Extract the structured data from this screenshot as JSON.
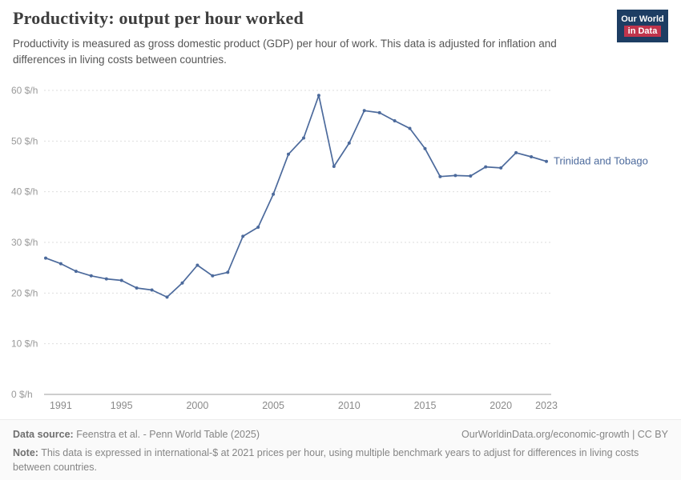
{
  "header": {
    "title": "Productivity: output per hour worked",
    "subtitle": "Productivity is measured as gross domestic product (GDP) per hour of work. This data is adjusted for inflation and differences in living costs between countries.",
    "logo": {
      "line1": "Our World",
      "line2": "in Data",
      "bg_color": "#1d3d63",
      "accent_color": "#c0344c"
    }
  },
  "chart_data": {
    "type": "line",
    "title": "Productivity: output per hour worked",
    "entity": "Trinidad and Tobago",
    "unit": "$/h",
    "line_color": "#4c6a9c",
    "grid": "dashed horizontal gridlines",
    "legend_position": "end-of-line label",
    "ylim": [
      0,
      60
    ],
    "yticks": [
      0,
      10,
      20,
      30,
      40,
      50,
      60
    ],
    "ytick_format": "{v} $/h",
    "xticks": [
      1991,
      1995,
      2000,
      2005,
      2010,
      2015,
      2020,
      2023
    ],
    "x": [
      1990,
      1991,
      1992,
      1993,
      1994,
      1995,
      1996,
      1997,
      1998,
      1999,
      2000,
      2001,
      2002,
      2003,
      2004,
      2005,
      2006,
      2007,
      2008,
      2009,
      2010,
      2011,
      2012,
      2013,
      2014,
      2015,
      2016,
      2017,
      2018,
      2019,
      2020,
      2021,
      2022,
      2023
    ],
    "y": [
      26.9,
      25.8,
      24.3,
      23.4,
      22.8,
      22.5,
      21.0,
      20.6,
      19.2,
      22.0,
      25.5,
      23.4,
      24.1,
      31.2,
      33.0,
      39.5,
      47.4,
      50.6,
      59.0,
      45.0,
      49.6,
      56.0,
      55.6,
      54.0,
      52.5,
      48.5,
      43.0,
      43.2,
      43.1,
      44.9,
      44.7,
      47.7,
      46.9,
      46.0
    ]
  },
  "footer": {
    "source_label": "Data source:",
    "source": "Feenstra et al. - Penn World Table (2025)",
    "link": "OurWorldinData.org/economic-growth | CC BY",
    "note_label": "Note:",
    "note": "This data is expressed in international-$ at 2021 prices per hour, using multiple benchmark years to adjust for differences in living costs between countries."
  }
}
